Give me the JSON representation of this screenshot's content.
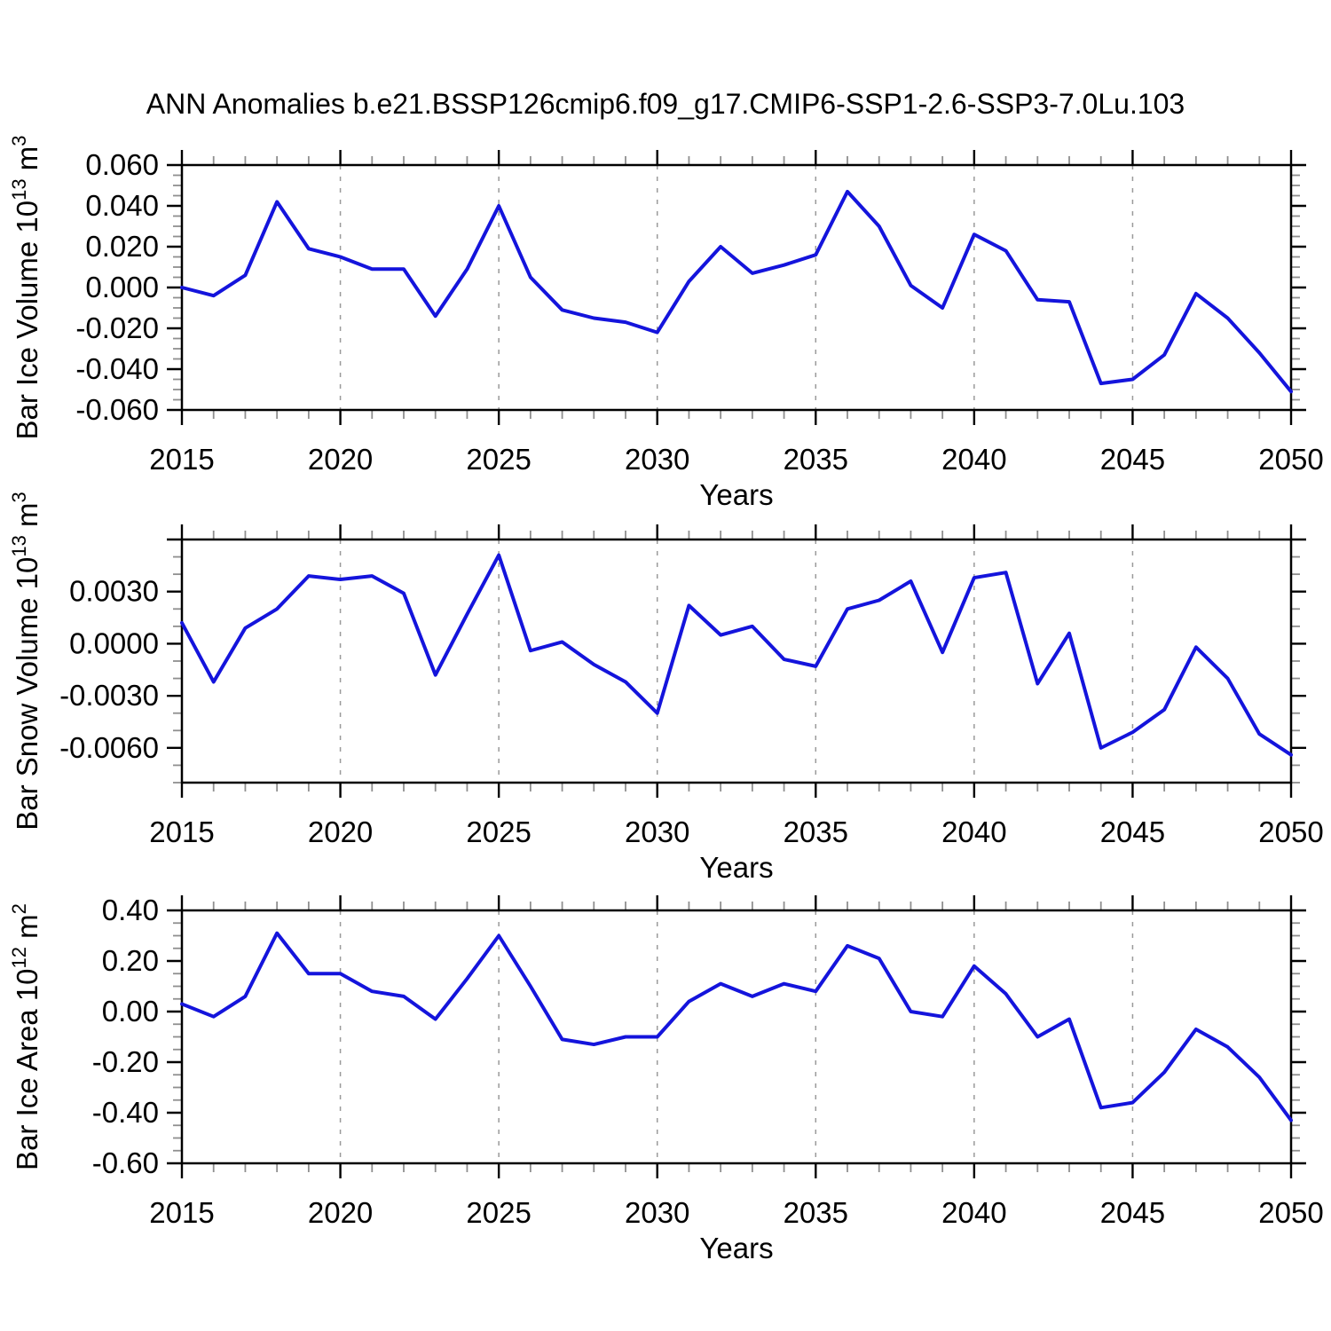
{
  "title": "ANN Anomalies b.e21.BSSP126cmip6.f09_g17.CMIP6-SSP1-2.6-SSP3-7.0Lu.103",
  "chart_data": {
    "type": "line",
    "title": "ANN Anomalies b.e21.BSSP126cmip6.f09_g17.CMIP6-SSP1-2.6-SSP3-7.0Lu.103",
    "series_color": "#1414dc",
    "background_color": "#ffffff",
    "grid": "vertical-dashed",
    "legend": "none",
    "x_label": "Years",
    "x_range": [
      2015,
      2050
    ],
    "x_major_step": 5,
    "x_minor_step": 1,
    "grid_years": [
      2020,
      2025,
      2030,
      2035,
      2040,
      2045
    ],
    "x_tick_labels": [
      "2015",
      "2020",
      "2025",
      "2030",
      "2035",
      "2040",
      "2045",
      "2050"
    ],
    "years": [
      2015,
      2016,
      2017,
      2018,
      2019,
      2020,
      2021,
      2022,
      2023,
      2024,
      2025,
      2026,
      2027,
      2028,
      2029,
      2030,
      2031,
      2032,
      2033,
      2034,
      2035,
      2036,
      2037,
      2038,
      2039,
      2040,
      2041,
      2042,
      2043,
      2044,
      2045,
      2046,
      2047,
      2048,
      2049,
      2050
    ],
    "panels": [
      {
        "name": "bar-ice-volume",
        "ylabel": "Bar Ice Volume 10^13 m^3",
        "ylabel_parts": [
          {
            "t": "Bar Ice Volume 10"
          },
          {
            "t": "13",
            "sup": true
          },
          {
            "t": " m"
          },
          {
            "t": "3",
            "sup": true
          }
        ],
        "y_range": [
          -0.06,
          0.06
        ],
        "y_majors": [
          0.06,
          0.04,
          0.02,
          0,
          -0.02,
          -0.04,
          -0.06
        ],
        "y_major_labels": [
          "0.060",
          "0.040",
          "0.020",
          "0.000",
          "-0.020",
          "-0.040",
          "-0.060"
        ],
        "y_minor_step": 0.005,
        "values": [
          0.0,
          -0.004,
          0.006,
          0.042,
          0.019,
          0.015,
          0.009,
          0.009,
          -0.014,
          0.009,
          0.04,
          0.005,
          -0.011,
          -0.015,
          -0.017,
          -0.022,
          0.003,
          0.02,
          0.007,
          0.011,
          0.016,
          0.047,
          0.03,
          0.001,
          -0.01,
          0.026,
          0.018,
          -0.006,
          -0.007,
          -0.047,
          -0.045,
          -0.033,
          -0.003,
          -0.015,
          -0.032,
          -0.051
        ]
      },
      {
        "name": "bar-snow-volume",
        "ylabel": "Bar Snow Volume 10^13 m^3",
        "ylabel_parts": [
          {
            "t": "Bar Snow Volume 10"
          },
          {
            "t": "13",
            "sup": true
          },
          {
            "t": " m"
          },
          {
            "t": "3",
            "sup": true
          }
        ],
        "y_range": [
          -0.008,
          0.006
        ],
        "y_majors": [
          0.006,
          0.003,
          0,
          -0.003,
          -0.006
        ],
        "y_major_labels": [
          "",
          "0.0030",
          "0.0000",
          "-0.0030",
          "-0.0060"
        ],
        "y_minor_step": 0.001,
        "values": [
          0.0012,
          -0.0022,
          0.0009,
          0.002,
          0.0039,
          0.0037,
          0.0039,
          0.0029,
          -0.0018,
          0.0017,
          0.0051,
          -0.0004,
          0.0001,
          -0.0012,
          -0.0022,
          -0.004,
          0.0022,
          0.0005,
          0.001,
          -0.0009,
          -0.0013,
          0.002,
          0.0025,
          0.0036,
          -0.0005,
          0.0038,
          0.0041,
          -0.0023,
          0.0006,
          -0.006,
          -0.0051,
          -0.0038,
          -0.0002,
          -0.002,
          -0.0052,
          -0.0064
        ]
      },
      {
        "name": "bar-ice-area",
        "ylabel": "Bar Ice Area 10^12 m^2",
        "ylabel_parts": [
          {
            "t": "Bar Ice Area 10"
          },
          {
            "t": "12",
            "sup": true
          },
          {
            "t": " m"
          },
          {
            "t": "2",
            "sup": true
          }
        ],
        "y_range": [
          -0.6,
          0.4
        ],
        "y_majors": [
          0.4,
          0.2,
          0,
          -0.2,
          -0.4,
          -0.6
        ],
        "y_major_labels": [
          "0.40",
          "0.20",
          "0.00",
          "-0.20",
          "-0.40",
          "-0.60"
        ],
        "y_minor_step": 0.05,
        "values": [
          0.03,
          -0.02,
          0.06,
          0.31,
          0.15,
          0.15,
          0.08,
          0.06,
          -0.03,
          0.13,
          0.3,
          0.1,
          -0.11,
          -0.13,
          -0.1,
          -0.1,
          0.04,
          0.11,
          0.06,
          0.11,
          0.08,
          0.26,
          0.21,
          0.0,
          -0.02,
          0.18,
          0.07,
          -0.1,
          -0.03,
          -0.38,
          -0.36,
          -0.24,
          -0.07,
          -0.14,
          -0.26,
          -0.43
        ]
      }
    ]
  }
}
